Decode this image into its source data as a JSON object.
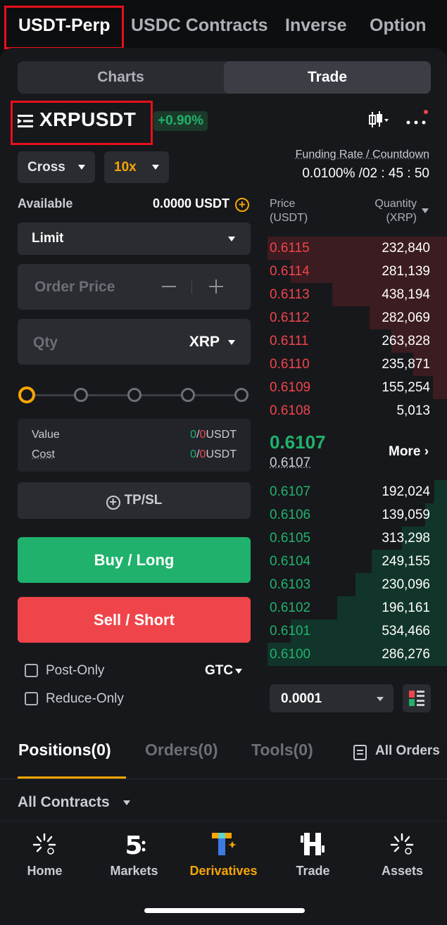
{
  "top_tabs": [
    "USDT-Perp",
    "USDC Contracts",
    "Inverse",
    "Option"
  ],
  "segment": {
    "charts": "Charts",
    "trade": "Trade"
  },
  "symbol": {
    "name": "XRPUSDT",
    "change": "+0.90%"
  },
  "margin_mode": "Cross",
  "leverage": "10x",
  "funding": {
    "label": "Funding Rate / Countdown",
    "value": "0.0100% /02 : 45 : 50"
  },
  "available": {
    "label": "Available",
    "value": "0.0000 USDT"
  },
  "order_type": "Limit",
  "price_input": {
    "placeholder": "Order Price"
  },
  "qty_input": {
    "placeholder": "Qty",
    "unit": "XRP"
  },
  "slider": {
    "value_percent": 0
  },
  "value_cost": {
    "value_label": "Value",
    "cost_label": "Cost",
    "value_green": "0",
    "value_red": "0",
    "unit": "USDT"
  },
  "tpsl_label": "TP/SL",
  "buy_label": "Buy / Long",
  "sell_label": "Sell / Short",
  "options": {
    "post_only": "Post-Only",
    "reduce_only": "Reduce-Only",
    "tif": "GTC"
  },
  "orderbook": {
    "price_header": [
      "Price",
      "(USDT)"
    ],
    "qty_header": [
      "Quantity",
      "(XRP)"
    ],
    "asks": [
      {
        "price": "0.6115",
        "qty": "232,840",
        "depth": 1.0
      },
      {
        "price": "0.6114",
        "qty": "281,139",
        "depth": 0.87
      },
      {
        "price": "0.6113",
        "qty": "438,194",
        "depth": 0.64
      },
      {
        "price": "0.6112",
        "qty": "282,069",
        "depth": 0.43
      },
      {
        "price": "0.6111",
        "qty": "263,828",
        "depth": 0.31
      },
      {
        "price": "0.6110",
        "qty": "235,871",
        "depth": 0.19
      },
      {
        "price": "0.6109",
        "qty": "155,254",
        "depth": 0.08
      },
      {
        "price": "0.6108",
        "qty": "5,013",
        "depth": 0.0
      }
    ],
    "mid_price": "0.6107",
    "mark_price": "0.6107",
    "more_label": "More",
    "bids": [
      {
        "price": "0.6107",
        "qty": "192,024",
        "depth": 0.07
      },
      {
        "price": "0.6106",
        "qty": "139,059",
        "depth": 0.12
      },
      {
        "price": "0.6105",
        "qty": "313,298",
        "depth": 0.25
      },
      {
        "price": "0.6104",
        "qty": "249,155",
        "depth": 0.42
      },
      {
        "price": "0.6103",
        "qty": "230,096",
        "depth": 0.51
      },
      {
        "price": "0.6102",
        "qty": "196,161",
        "depth": 0.61
      },
      {
        "price": "0.6101",
        "qty": "534,466",
        "depth": 0.87
      },
      {
        "price": "0.6100",
        "qty": "286,276",
        "depth": 1.0
      }
    ],
    "precision": "0.0001"
  },
  "position_tabs": [
    "Positions(0)",
    "Orders(0)",
    "Tools(0)"
  ],
  "all_orders": "All Orders",
  "contracts_filter": "All Contracts",
  "bottom_nav": [
    {
      "label": "Home",
      "icon": "home-spark-icon"
    },
    {
      "label": "Markets",
      "icon": "markets-5-icon"
    },
    {
      "label": "Derivatives",
      "icon": "derivatives-t-icon",
      "active": true
    },
    {
      "label": "Trade",
      "icon": "trade-h-icon"
    },
    {
      "label": "Assets",
      "icon": "assets-spark-icon"
    }
  ],
  "colors": {
    "green": "#20b26c",
    "red": "#ef454a",
    "accent": "#f7a600",
    "highlight": "#e8101a"
  }
}
